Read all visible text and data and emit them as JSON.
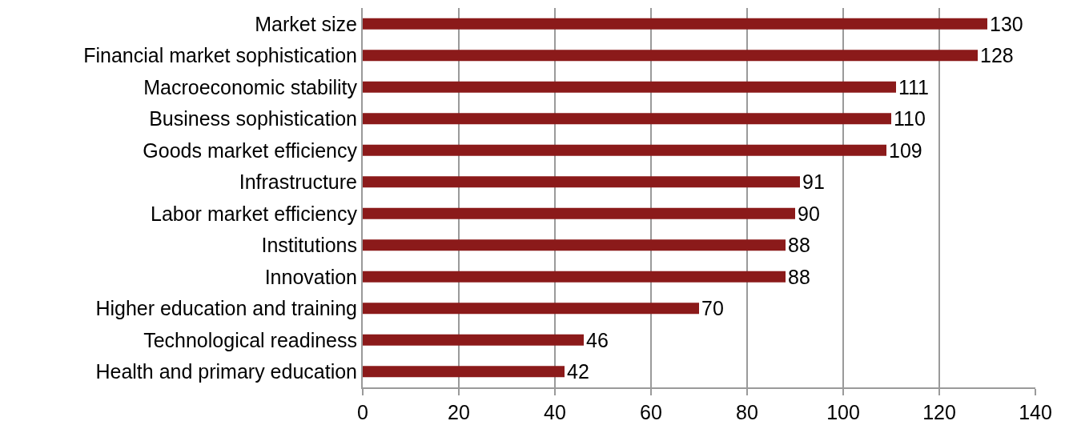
{
  "chart_data": {
    "type": "bar",
    "orientation": "horizontal",
    "categories": [
      "Market size",
      "Financial market sophistication",
      "Macroeconomic stability",
      "Business sophistication",
      "Goods market efficiency",
      "Infrastructure",
      "Labor market efficiency",
      "Institutions",
      "Innovation",
      "Higher education and training",
      "Technological readiness",
      "Health and primary education"
    ],
    "values": [
      130,
      128,
      111,
      110,
      109,
      91,
      90,
      88,
      88,
      70,
      46,
      42
    ],
    "color": "#8b1a1a",
    "xlim": [
      0,
      140
    ],
    "xticks": [
      0,
      20,
      40,
      60,
      80,
      100,
      120,
      140
    ],
    "grid": "x",
    "data_labels": true,
    "legend": false
  }
}
